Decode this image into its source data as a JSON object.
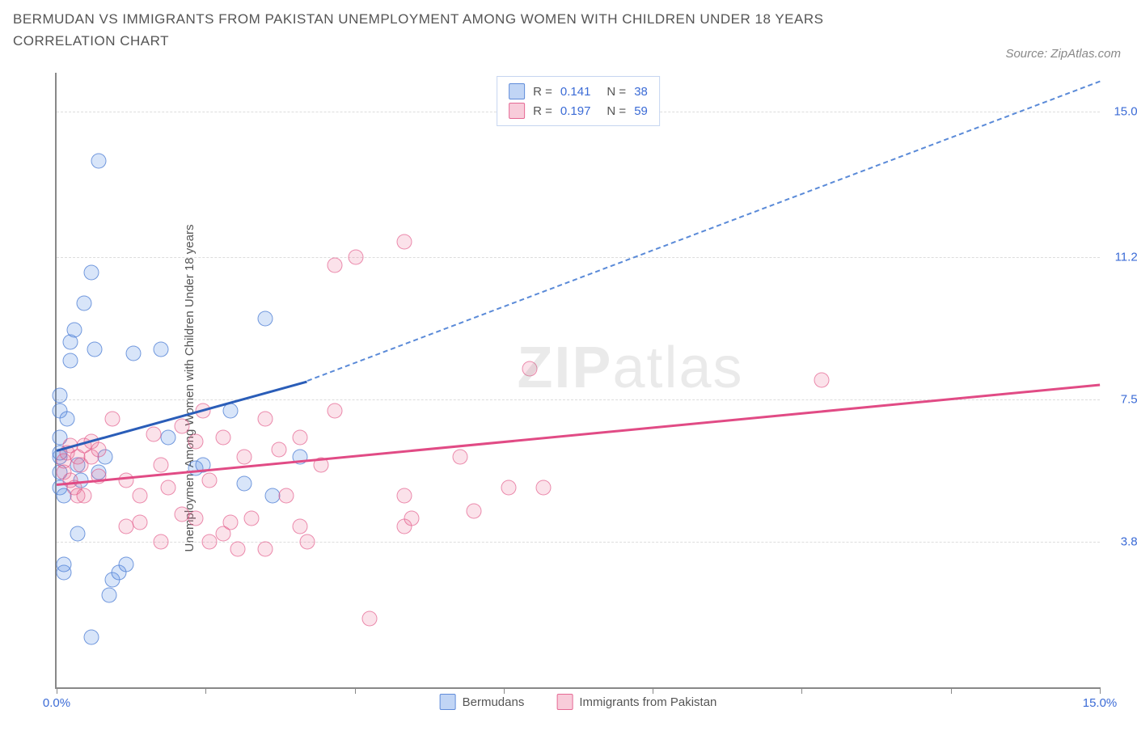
{
  "title": "BERMUDAN VS IMMIGRANTS FROM PAKISTAN UNEMPLOYMENT AMONG WOMEN WITH CHILDREN UNDER 18 YEARS CORRELATION CHART",
  "source": "Source: ZipAtlas.com",
  "y_axis_label": "Unemployment Among Women with Children Under 18 years",
  "watermark_bold": "ZIP",
  "watermark_rest": "atlas",
  "chart": {
    "type": "scatter",
    "background_color": "#ffffff",
    "grid_color": "#dddddd",
    "axis_color": "#888888",
    "tick_color": "#3b6bd6",
    "xlim": [
      0,
      15
    ],
    "ylim": [
      0,
      16
    ],
    "x_ticks_at": [
      0,
      2.14,
      4.29,
      6.43,
      8.57,
      10.71,
      12.86,
      15
    ],
    "x_tick_labels": {
      "0": "0.0%",
      "15": "15.0%"
    },
    "y_ticks": [
      {
        "v": 3.8,
        "label": "3.8%"
      },
      {
        "v": 7.5,
        "label": "7.5%"
      },
      {
        "v": 11.2,
        "label": "11.2%"
      },
      {
        "v": 15.0,
        "label": "15.0%"
      }
    ],
    "series": [
      {
        "name": "Bermudans",
        "color_fill": "rgba(100,150,230,0.25)",
        "color_stroke": "rgba(70,120,210,0.7)",
        "class": "scatter-blue",
        "R": "0.141",
        "N": "38",
        "trend": {
          "x1": 0,
          "y1": 6.2,
          "x2": 3.6,
          "y2": 8.0,
          "dash_to_x": 15,
          "dash_to_y": 15.8,
          "solid_color": "#2a5db8",
          "dash_color": "#5a8ad8"
        },
        "points": [
          [
            0.05,
            5.2
          ],
          [
            0.05,
            5.6
          ],
          [
            0.05,
            6.0
          ],
          [
            0.05,
            6.1
          ],
          [
            0.05,
            6.5
          ],
          [
            0.05,
            7.2
          ],
          [
            0.05,
            7.6
          ],
          [
            0.1,
            5.0
          ],
          [
            0.1,
            3.0
          ],
          [
            0.1,
            3.2
          ],
          [
            0.15,
            7.0
          ],
          [
            0.2,
            8.5
          ],
          [
            0.2,
            9.0
          ],
          [
            0.25,
            9.3
          ],
          [
            0.3,
            5.8
          ],
          [
            0.3,
            4.0
          ],
          [
            0.35,
            5.4
          ],
          [
            0.4,
            10.0
          ],
          [
            0.5,
            10.8
          ],
          [
            0.5,
            1.3
          ],
          [
            0.55,
            8.8
          ],
          [
            0.6,
            13.7
          ],
          [
            0.6,
            5.6
          ],
          [
            0.7,
            6.0
          ],
          [
            0.75,
            2.4
          ],
          [
            0.8,
            2.8
          ],
          [
            0.9,
            3.0
          ],
          [
            1.0,
            3.2
          ],
          [
            1.1,
            8.7
          ],
          [
            1.5,
            8.8
          ],
          [
            1.6,
            6.5
          ],
          [
            2.0,
            5.7
          ],
          [
            2.1,
            5.8
          ],
          [
            2.5,
            7.2
          ],
          [
            2.7,
            5.3
          ],
          [
            3.0,
            9.6
          ],
          [
            3.1,
            5.0
          ],
          [
            3.5,
            6.0
          ]
        ]
      },
      {
        "name": "Immigrants from Pakistan",
        "color_fill": "rgba(235,110,150,0.2)",
        "color_stroke": "rgba(225,80,130,0.6)",
        "class": "scatter-pink",
        "R": "0.197",
        "N": "59",
        "trend": {
          "x1": 0,
          "y1": 5.3,
          "x2": 15,
          "y2": 7.9,
          "solid_color": "#e14b85"
        },
        "points": [
          [
            0.1,
            5.6
          ],
          [
            0.1,
            5.9
          ],
          [
            0.15,
            6.1
          ],
          [
            0.2,
            5.4
          ],
          [
            0.2,
            6.3
          ],
          [
            0.25,
            5.2
          ],
          [
            0.3,
            6.0
          ],
          [
            0.3,
            5.0
          ],
          [
            0.35,
            5.8
          ],
          [
            0.4,
            6.3
          ],
          [
            0.4,
            5.0
          ],
          [
            0.5,
            6.0
          ],
          [
            0.5,
            6.4
          ],
          [
            0.6,
            6.2
          ],
          [
            0.6,
            5.5
          ],
          [
            0.8,
            7.0
          ],
          [
            1.0,
            5.4
          ],
          [
            1.0,
            4.2
          ],
          [
            1.2,
            5.0
          ],
          [
            1.2,
            4.3
          ],
          [
            1.4,
            6.6
          ],
          [
            1.5,
            5.8
          ],
          [
            1.5,
            3.8
          ],
          [
            1.6,
            5.2
          ],
          [
            1.8,
            6.8
          ],
          [
            1.8,
            4.5
          ],
          [
            2.0,
            6.4
          ],
          [
            2.0,
            4.4
          ],
          [
            2.1,
            7.2
          ],
          [
            2.2,
            5.4
          ],
          [
            2.2,
            3.8
          ],
          [
            2.4,
            6.5
          ],
          [
            2.4,
            4.0
          ],
          [
            2.5,
            4.3
          ],
          [
            2.6,
            3.6
          ],
          [
            2.7,
            6.0
          ],
          [
            2.8,
            4.4
          ],
          [
            3.0,
            7.0
          ],
          [
            3.0,
            3.6
          ],
          [
            3.2,
            6.2
          ],
          [
            3.3,
            5.0
          ],
          [
            3.5,
            4.2
          ],
          [
            3.5,
            6.5
          ],
          [
            3.6,
            3.8
          ],
          [
            3.8,
            5.8
          ],
          [
            4.0,
            7.2
          ],
          [
            4.0,
            11.0
          ],
          [
            4.3,
            11.2
          ],
          [
            4.5,
            1.8
          ],
          [
            5.0,
            11.6
          ],
          [
            5.0,
            5.0
          ],
          [
            5.0,
            4.2
          ],
          [
            5.1,
            4.4
          ],
          [
            5.8,
            6.0
          ],
          [
            6.0,
            4.6
          ],
          [
            6.5,
            5.2
          ],
          [
            6.8,
            8.3
          ],
          [
            7.0,
            5.2
          ],
          [
            11.0,
            8.0
          ]
        ]
      }
    ],
    "legend_top": {
      "r_label": "R =",
      "n_label": "N ="
    },
    "legend_bottom": [
      {
        "swatch": "swatch-blue",
        "label": "Bermudans"
      },
      {
        "swatch": "swatch-pink",
        "label": "Immigrants from Pakistan"
      }
    ]
  }
}
